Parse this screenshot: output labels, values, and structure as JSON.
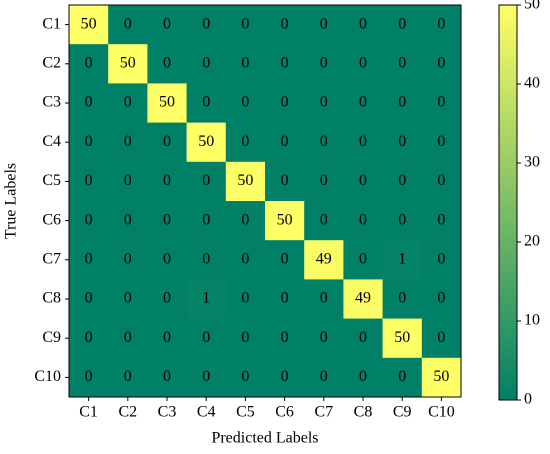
{
  "chart_data": {
    "type": "heatmap",
    "x_categories": [
      "C1",
      "C2",
      "C3",
      "C4",
      "C5",
      "C6",
      "C7",
      "C8",
      "C9",
      "C10"
    ],
    "y_categories": [
      "C1",
      "C2",
      "C3",
      "C4",
      "C5",
      "C6",
      "C7",
      "C8",
      "C9",
      "C10"
    ],
    "values": [
      [
        50,
        0,
        0,
        0,
        0,
        0,
        0,
        0,
        0,
        0
      ],
      [
        0,
        50,
        0,
        0,
        0,
        0,
        0,
        0,
        0,
        0
      ],
      [
        0,
        0,
        50,
        0,
        0,
        0,
        0,
        0,
        0,
        0
      ],
      [
        0,
        0,
        0,
        50,
        0,
        0,
        0,
        0,
        0,
        0
      ],
      [
        0,
        0,
        0,
        0,
        50,
        0,
        0,
        0,
        0,
        0
      ],
      [
        0,
        0,
        0,
        0,
        0,
        50,
        0,
        0,
        0,
        0
      ],
      [
        0,
        0,
        0,
        0,
        0,
        0,
        49,
        0,
        1,
        0
      ],
      [
        0,
        0,
        0,
        1,
        0,
        0,
        0,
        49,
        0,
        0
      ],
      [
        0,
        0,
        0,
        0,
        0,
        0,
        0,
        0,
        50,
        0
      ],
      [
        0,
        0,
        0,
        0,
        0,
        0,
        0,
        0,
        0,
        50
      ]
    ],
    "xlabel": "Predicted Labels",
    "ylabel": "True Labels",
    "colormap": [
      "#008066",
      "#ffff66"
    ],
    "zlim": [
      0,
      50
    ],
    "zticks": [
      0,
      10,
      20,
      30,
      40,
      50
    ]
  }
}
